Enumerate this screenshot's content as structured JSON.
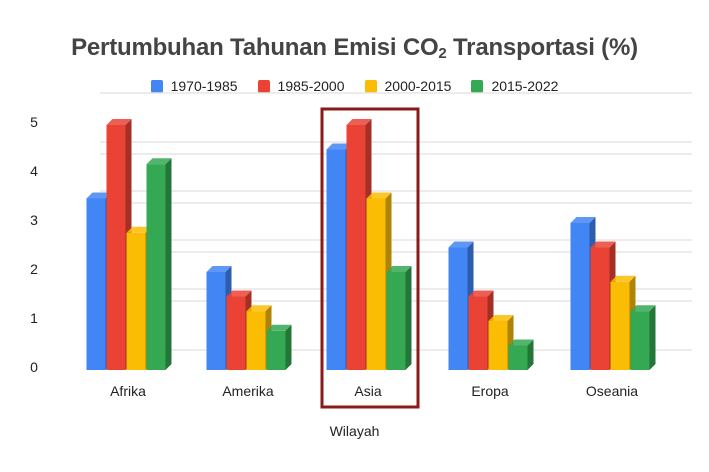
{
  "chart_data": {
    "type": "bar",
    "title_main": "Pertumbuhan Tahunan Emisi CO",
    "title_sub": "2",
    "title_rest": " Transportasi (%)",
    "title": "Pertumbuhan Tahunan Emisi CO₂ Transportasi (%)",
    "xlabel": "Wilayah",
    "ylabel": "",
    "ylim": [
      0,
      5
    ],
    "yticks": [
      0,
      1,
      2,
      3,
      4,
      5
    ],
    "grid": true,
    "legend_position": "top",
    "style": "3d-bar",
    "categories": [
      "Afrika",
      "Amerika",
      "Asia",
      "Eropa",
      "Oseania"
    ],
    "series": [
      {
        "name": "1970-1985",
        "color": "#4285F4",
        "side": "#2E5DAB",
        "values": [
          3.5,
          2.0,
          4.5,
          2.5,
          3.0
        ]
      },
      {
        "name": "1985-2000",
        "color": "#EA4335",
        "side": "#A32F25",
        "values": [
          5.0,
          1.5,
          5.0,
          1.5,
          2.5
        ]
      },
      {
        "name": "2000-2015",
        "color": "#FBBC04",
        "side": "#AF8303",
        "values": [
          2.8,
          1.2,
          3.5,
          1.0,
          1.8
        ]
      },
      {
        "name": "2015-2022",
        "color": "#34A853",
        "side": "#247538",
        "values": [
          4.2,
          0.8,
          2.0,
          0.5,
          1.2
        ]
      }
    ],
    "annotations": [
      {
        "type": "highlight-box",
        "category": "Asia",
        "color": "#8B1A1A"
      }
    ]
  }
}
